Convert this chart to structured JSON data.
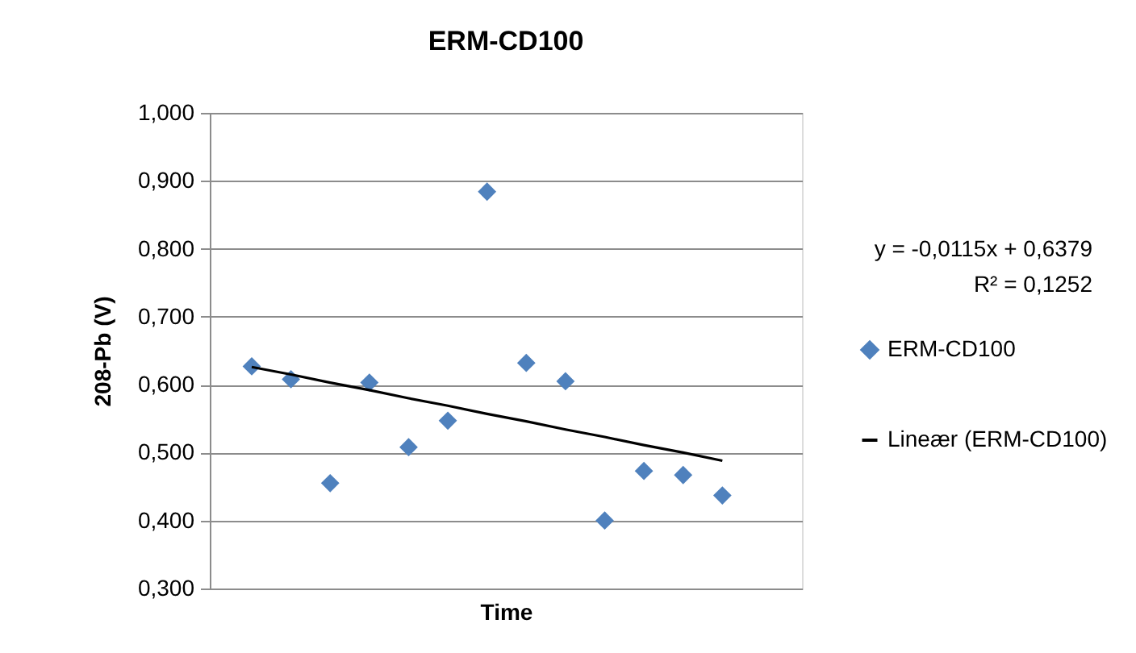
{
  "chart_data": {
    "type": "scatter",
    "title": "ERM-CD100",
    "xlabel": "Time",
    "ylabel": "208-Pb (V)",
    "categories": [
      null,
      null,
      null,
      null,
      null,
      null,
      null,
      null,
      null,
      null,
      null,
      null,
      null
    ],
    "series": [
      {
        "name": "ERM-CD100",
        "color": "#4f81bd",
        "marker": "diamond",
        "values": [
          0.627,
          0.608,
          0.455,
          0.603,
          0.508,
          0.547,
          0.884,
          0.632,
          0.605,
          0.4,
          0.473,
          0.467,
          0.437
        ]
      },
      {
        "name": "Lineær (ERM-CD100)",
        "color": "#000000",
        "type": "line",
        "marker": "none",
        "line_style": "solid",
        "values": [
          0.626,
          0.615,
          0.603,
          0.592,
          0.58,
          0.569,
          0.557,
          0.546,
          0.534,
          0.523,
          0.511,
          0.5,
          0.488
        ]
      }
    ],
    "ylim": [
      0.3,
      1.0
    ],
    "yticks": [
      {
        "value": 0.3,
        "label": "0,300"
      },
      {
        "value": 0.4,
        "label": "0,400"
      },
      {
        "value": 0.5,
        "label": "0,500"
      },
      {
        "value": 0.6,
        "label": "0,600"
      },
      {
        "value": 0.7,
        "label": "0,700"
      },
      {
        "value": 0.8,
        "label": "0,800"
      },
      {
        "value": 0.9,
        "label": "0,900"
      },
      {
        "value": 1.0,
        "label": "1,000"
      }
    ],
    "grid": "y",
    "legend": "right",
    "tick_labels": "y",
    "annotations": [
      "y = -0,0115x + 0,6379",
      "R² = 0,1252"
    ]
  }
}
